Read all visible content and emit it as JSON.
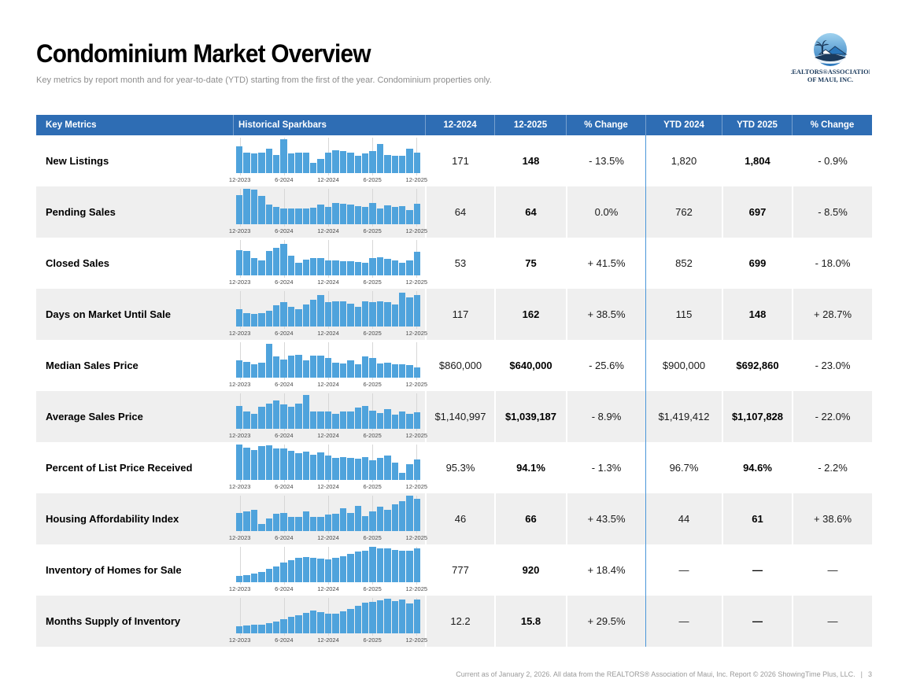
{
  "page": {
    "title": "Condominium Market Overview",
    "subtitle": "Key metrics by report month and for year-to-date (YTD) starting from the first of the year. Condominium properties only.",
    "footer": "Current as of January 2, 2026. All data from the REALTORS® Association of Maui, Inc. Report © 2026 ShowingTime Plus, LLC.",
    "footer_divider": "|",
    "page_number": "3"
  },
  "logo": {
    "icon": "palm-tree-house-wave-logo",
    "line1": "REALTORS®ASSOCIATION",
    "line2": "OF MAUI, INC."
  },
  "colors": {
    "header_bg": "#2e6db4",
    "bar": "#4fa3dc",
    "row_alt": "#efefef",
    "divider": "#4a96d9",
    "grid": "#d7d7d7",
    "logo_circle": "#5aabde",
    "logo_navy": "#1b3a5c"
  },
  "table": {
    "headers": [
      "Key Metrics",
      "Historical Sparkbars",
      "12-2024",
      "12-2025",
      "% Change",
      "YTD 2024",
      "YTD 2025",
      "% Change"
    ],
    "axis_labels": [
      "12-2023",
      "6-2024",
      "12-2024",
      "6-2025",
      "12-2025"
    ],
    "rows": [
      {
        "label": "New Listings",
        "values": [
          "171",
          "148",
          "- 13.5%",
          "1,820",
          "1,804",
          "- 0.9%"
        ]
      },
      {
        "label": "Pending Sales",
        "values": [
          "64",
          "64",
          "0.0%",
          "762",
          "697",
          "- 8.5%"
        ]
      },
      {
        "label": "Closed Sales",
        "values": [
          "53",
          "75",
          "+ 41.5%",
          "852",
          "699",
          "- 18.0%"
        ]
      },
      {
        "label": "Days on Market Until Sale",
        "values": [
          "117",
          "162",
          "+ 38.5%",
          "115",
          "148",
          "+ 28.7%"
        ]
      },
      {
        "label": "Median Sales Price",
        "values": [
          "$860,000",
          "$640,000",
          "- 25.6%",
          "$900,000",
          "$692,860",
          "- 23.0%"
        ]
      },
      {
        "label": "Average Sales Price",
        "values": [
          "$1,140,997",
          "$1,039,187",
          "- 8.9%",
          "$1,419,412",
          "$1,107,828",
          "- 22.0%"
        ]
      },
      {
        "label": "Percent of List Price Received",
        "values": [
          "95.3%",
          "94.1%",
          "- 1.3%",
          "96.7%",
          "94.6%",
          "- 2.2%"
        ]
      },
      {
        "label": "Housing Affordability Index",
        "values": [
          "46",
          "66",
          "+ 43.5%",
          "44",
          "61",
          "+ 38.6%"
        ]
      },
      {
        "label": "Inventory of Homes for Sale",
        "values": [
          "777",
          "920",
          "+ 18.4%",
          "—",
          "—",
          "—"
        ]
      },
      {
        "label": "Months Supply of Inventory",
        "values": [
          "12.2",
          "15.8",
          "+ 29.5%",
          "—",
          "—",
          "—"
        ]
      }
    ]
  },
  "chart_data": {
    "type": "bar",
    "note": "Historical sparkbars, monthly values 12-2023 through 12-2025, heights as relative percent of tallest bar per row",
    "x_ticks": [
      "12-2023",
      "6-2024",
      "12-2024",
      "6-2025",
      "12-2025"
    ],
    "tick_bar_indexes": [
      0,
      6,
      12,
      18,
      24
    ],
    "series": [
      {
        "name": "New Listings",
        "values": [
          75,
          58,
          55,
          58,
          68,
          52,
          95,
          55,
          58,
          58,
          30,
          40,
          58,
          65,
          62,
          58,
          50,
          55,
          62,
          82,
          52,
          48,
          50,
          70,
          58
        ]
      },
      {
        "name": "Pending Sales",
        "values": [
          82,
          100,
          98,
          80,
          55,
          48,
          45,
          44,
          44,
          44,
          46,
          56,
          48,
          60,
          58,
          55,
          52,
          48,
          60,
          44,
          54,
          48,
          52,
          40,
          58
        ]
      },
      {
        "name": "Closed Sales",
        "values": [
          72,
          70,
          48,
          42,
          68,
          78,
          90,
          55,
          35,
          45,
          48,
          48,
          42,
          42,
          40,
          40,
          38,
          35,
          48,
          52,
          46,
          42,
          36,
          42,
          66
        ]
      },
      {
        "name": "Days on Market Until Sale",
        "values": [
          50,
          38,
          35,
          38,
          45,
          60,
          68,
          55,
          50,
          62,
          75,
          88,
          70,
          72,
          72,
          65,
          55,
          72,
          68,
          72,
          70,
          62,
          95,
          82,
          88
        ]
      },
      {
        "name": "Median Sales Price",
        "values": [
          48,
          45,
          38,
          42,
          95,
          60,
          52,
          62,
          65,
          48,
          62,
          62,
          55,
          42,
          40,
          48,
          38,
          60,
          55,
          40,
          42,
          38,
          38,
          35,
          30
        ]
      },
      {
        "name": "Average Sales Price",
        "values": [
          65,
          50,
          42,
          62,
          72,
          80,
          70,
          62,
          72,
          95,
          50,
          50,
          48,
          42,
          50,
          48,
          60,
          65,
          52,
          45,
          55,
          40,
          48,
          42,
          46
        ]
      },
      {
        "name": "Percent of List Price Received",
        "values": [
          100,
          92,
          85,
          95,
          98,
          90,
          88,
          82,
          75,
          80,
          72,
          78,
          70,
          62,
          65,
          62,
          60,
          65,
          55,
          62,
          70,
          48,
          20,
          45,
          58
        ]
      },
      {
        "name": "Housing Affordability Index",
        "values": [
          52,
          55,
          60,
          20,
          35,
          48,
          52,
          40,
          40,
          55,
          40,
          40,
          46,
          50,
          65,
          52,
          72,
          42,
          55,
          68,
          60,
          75,
          85,
          100,
          92
        ]
      },
      {
        "name": "Inventory of Homes for Sale",
        "values": [
          18,
          20,
          25,
          30,
          38,
          45,
          55,
          62,
          68,
          72,
          70,
          66,
          64,
          68,
          74,
          80,
          86,
          90,
          100,
          96,
          95,
          92,
          90,
          88,
          96
        ]
      },
      {
        "name": "Months Supply of Inventory",
        "values": [
          20,
          22,
          24,
          24,
          28,
          34,
          40,
          46,
          52,
          58,
          64,
          60,
          56,
          55,
          62,
          70,
          78,
          86,
          90,
          94,
          98,
          92,
          96,
          84,
          95
        ]
      }
    ]
  }
}
